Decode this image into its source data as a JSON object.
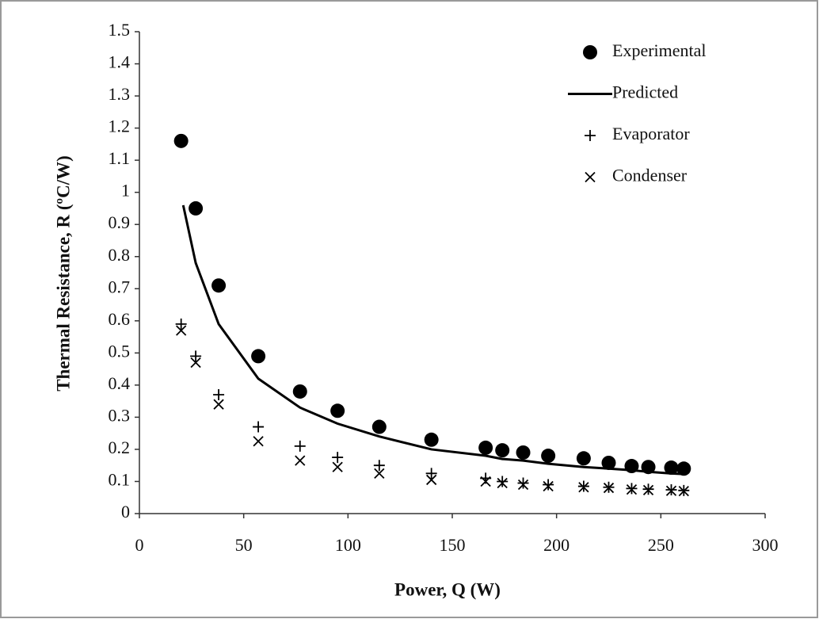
{
  "chart_data": {
    "type": "scatter",
    "x_label": "Power, Q (W)",
    "y_label": "Thermal Resistance, R (ºC/W)",
    "xlim": [
      0,
      300
    ],
    "xticks": [
      0,
      50,
      100,
      150,
      200,
      250,
      300
    ],
    "ylim": [
      0,
      1.5
    ],
    "yticks": [
      0,
      0.1,
      0.2,
      0.3,
      0.4,
      0.5,
      0.6,
      0.7,
      0.8,
      0.9,
      1,
      1.1,
      1.2,
      1.3,
      1.4,
      1.5
    ],
    "legend": "upper-right",
    "series": [
      {
        "name": "Experimental",
        "marker": "circle",
        "color": "#000000",
        "x": [
          20,
          27,
          38,
          57,
          77,
          95,
          115,
          140,
          166,
          174,
          184,
          196,
          213,
          225,
          236,
          244,
          255,
          261
        ],
        "values": [
          1.16,
          0.95,
          0.71,
          0.49,
          0.38,
          0.32,
          0.27,
          0.23,
          0.205,
          0.197,
          0.19,
          0.18,
          0.172,
          0.158,
          0.148,
          0.145,
          0.143,
          0.14
        ]
      },
      {
        "name": "Predicted",
        "marker": "line",
        "color": "#000000",
        "x": [
          21,
          27,
          38,
          57,
          77,
          95,
          115,
          140,
          166,
          174,
          184,
          196,
          213,
          225,
          236,
          244,
          255,
          261
        ],
        "values": [
          0.96,
          0.78,
          0.59,
          0.42,
          0.33,
          0.28,
          0.24,
          0.2,
          0.18,
          0.17,
          0.165,
          0.155,
          0.145,
          0.14,
          0.135,
          0.13,
          0.125,
          0.123
        ]
      },
      {
        "name": "Evaporator",
        "marker": "plus",
        "color": "#000000",
        "x": [
          20,
          27,
          38,
          57,
          77,
          95,
          115,
          140,
          166,
          174,
          184,
          196,
          213,
          225,
          236,
          244,
          255,
          261
        ],
        "values": [
          0.59,
          0.49,
          0.37,
          0.27,
          0.21,
          0.175,
          0.15,
          0.125,
          0.11,
          0.1,
          0.095,
          0.09,
          0.085,
          0.082,
          0.078,
          0.076,
          0.074,
          0.072
        ]
      },
      {
        "name": "Condenser",
        "marker": "cross",
        "color": "#000000",
        "x": [
          20,
          27,
          38,
          57,
          77,
          95,
          115,
          140,
          166,
          174,
          184,
          196,
          213,
          225,
          236,
          244,
          255,
          261
        ],
        "values": [
          0.57,
          0.47,
          0.34,
          0.225,
          0.165,
          0.145,
          0.125,
          0.105,
          0.1,
          0.095,
          0.09,
          0.085,
          0.082,
          0.08,
          0.075,
          0.073,
          0.071,
          0.07
        ]
      }
    ]
  }
}
